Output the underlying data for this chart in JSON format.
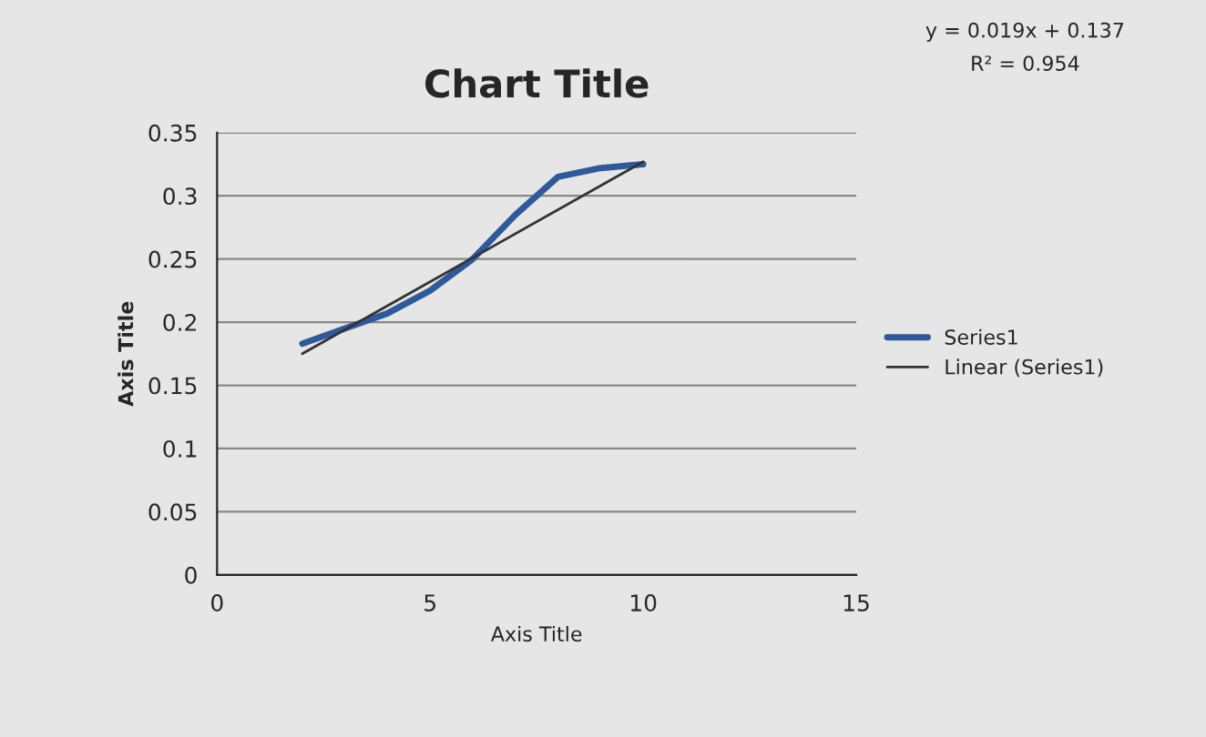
{
  "chart_data": {
    "type": "line",
    "title": "Chart Title",
    "xlabel": "Axis Title",
    "ylabel": "Axis Title",
    "series": [
      {
        "name": "Series1",
        "color": "#2e5a9c",
        "x": [
          2,
          3,
          4,
          5,
          6,
          7,
          8,
          9,
          10
        ],
        "values": [
          0.183,
          0.195,
          0.207,
          0.225,
          0.25,
          0.285,
          0.315,
          0.322,
          0.325
        ]
      },
      {
        "name": "Linear (Series1)",
        "color": "#333333",
        "type": "line",
        "x": [
          2,
          10
        ],
        "values": [
          0.175,
          0.327
        ]
      }
    ],
    "xlim": [
      0,
      15
    ],
    "xticks": [
      0,
      5,
      10,
      15
    ],
    "ylim": [
      0,
      0.35
    ],
    "yticks": [
      0,
      0.05,
      0.1,
      0.15,
      0.2,
      0.25,
      0.3,
      0.35
    ],
    "grid": "y",
    "legend": "right",
    "marker": "none",
    "line_style": "solid",
    "annotations": [
      "y = 0.019x + 0.137",
      "R² = 0.954"
    ]
  }
}
